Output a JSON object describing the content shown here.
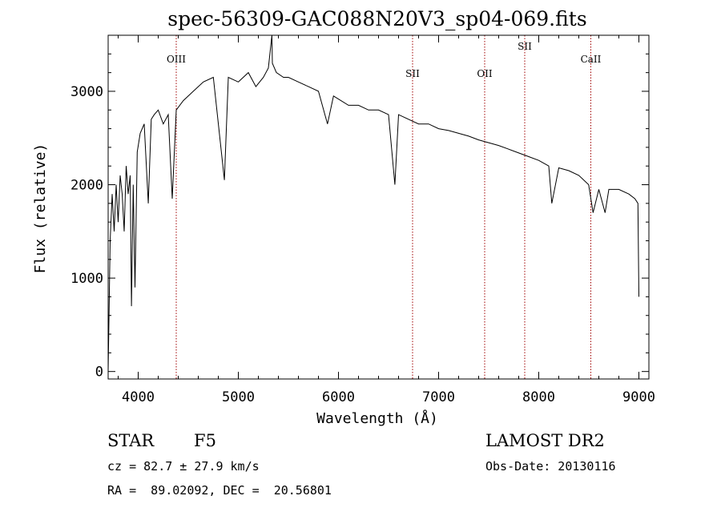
{
  "chart_data": {
    "type": "line",
    "title": "spec-56309-GAC088N20V3_sp04-069.fits",
    "xlabel": "Wavelength (Å)",
    "ylabel": "Flux (relative)",
    "xlim": [
      3700,
      9100
    ],
    "ylim": [
      -80,
      3600
    ],
    "x_ticks": [
      4000,
      5000,
      6000,
      7000,
      8000,
      9000
    ],
    "x_tick_labels": [
      "4000",
      "5000",
      "6000",
      "7000",
      "8000",
      "9000"
    ],
    "y_ticks": [
      0,
      1000,
      2000,
      3000
    ],
    "y_tick_labels": [
      "0",
      "1000",
      "2000",
      "3000"
    ],
    "grid": false,
    "series": [
      {
        "x": [
          3700,
          3720,
          3740,
          3760,
          3780,
          3800,
          3820,
          3840,
          3860,
          3880,
          3900,
          3920,
          3933,
          3950,
          3968,
          3990,
          4020,
          4060,
          4101,
          4130,
          4160,
          4200,
          4250,
          4300,
          4340,
          4380,
          4450,
          4550,
          4650,
          4750,
          4861,
          4900,
          5000,
          5100,
          5175,
          5250,
          5300,
          5335,
          5340,
          5380,
          5450,
          5500,
          5600,
          5700,
          5800,
          5890,
          5950,
          6100,
          6200,
          6300,
          6400,
          6500,
          6563,
          6600,
          6700,
          6800,
          6900,
          7000,
          7100,
          7200,
          7300,
          7400,
          7500,
          7600,
          7700,
          7800,
          7900,
          8000,
          8100,
          8130,
          8200,
          8300,
          8400,
          8498,
          8542,
          8600,
          8662,
          8700,
          8800,
          8900,
          8960,
          8990,
          9000
        ],
        "y": [
          0,
          1400,
          1900,
          1500,
          2000,
          1600,
          2100,
          1900,
          1500,
          2200,
          1900,
          2100,
          700,
          2000,
          900,
          2350,
          2550,
          2650,
          1800,
          2700,
          2750,
          2800,
          2650,
          2750,
          1850,
          2800,
          2900,
          3000,
          3100,
          3150,
          2050,
          3150,
          3100,
          3200,
          3050,
          3150,
          3250,
          3600,
          3300,
          3200,
          3150,
          3150,
          3100,
          3050,
          3000,
          2650,
          2950,
          2850,
          2850,
          2800,
          2800,
          2750,
          2000,
          2750,
          2700,
          2650,
          2650,
          2600,
          2580,
          2550,
          2520,
          2480,
          2450,
          2420,
          2380,
          2340,
          2300,
          2260,
          2200,
          1800,
          2180,
          2150,
          2100,
          2000,
          1700,
          1950,
          1700,
          1950,
          1950,
          1900,
          1850,
          1800,
          800
        ]
      }
    ],
    "lines": [
      {
        "label": "OIII",
        "x": 4380,
        "label_row": "upper"
      },
      {
        "label": "SII",
        "x": 6740,
        "label_row": "lower"
      },
      {
        "label": "OII",
        "x": 7460,
        "label_row": "lower"
      },
      {
        "label": "SII",
        "x": 7860,
        "label_row": "top"
      },
      {
        "label": "CaII",
        "x": 8520,
        "label_row": "upper"
      }
    ],
    "colors": {
      "spectrum": "#000000",
      "lines": "#a00000",
      "axes": "#000000"
    }
  },
  "footer": {
    "object": "STAR",
    "subclass": "F5",
    "survey": "LAMOST DR2",
    "cz": "cz = 82.7 ± 27.9 km/s",
    "obs_date": "Obs-Date: 20130116",
    "coords": "RA =  89.02092, DEC =  20.56801"
  }
}
